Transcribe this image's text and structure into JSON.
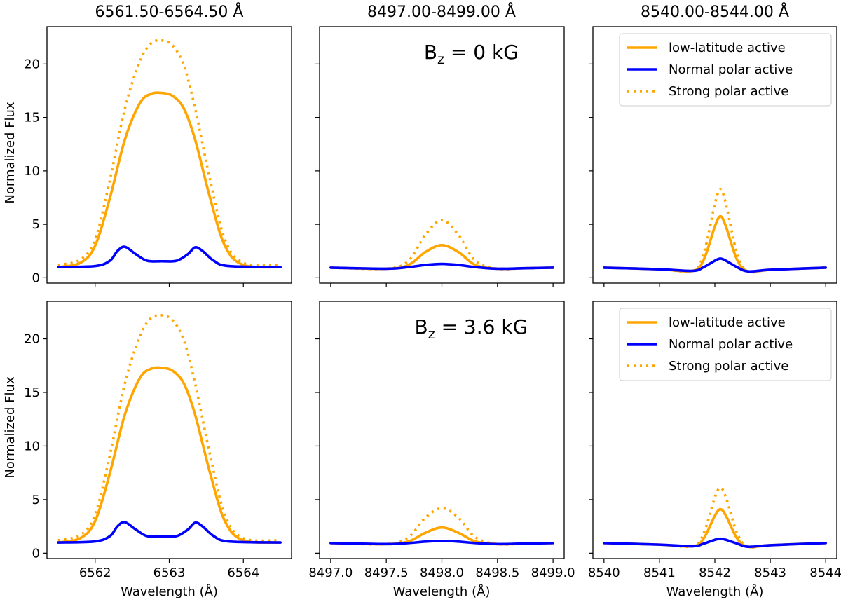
{
  "colors": {
    "orange": "#ffa500",
    "blue": "#0000ff",
    "background": "#ffffff",
    "axes": "#000000"
  },
  "chart_data": {
    "type": "line",
    "layout": "2 rows x 3 columns, shared y-axis across each row",
    "ylabel": "Normalized Flux",
    "xlabel": "Wavelength (Å)",
    "ylim": [
      -0.5,
      23.5
    ],
    "yticks": [
      0,
      5,
      10,
      15,
      20
    ],
    "legend": {
      "placement": "top-right of right column panels",
      "entries": [
        {
          "label": "low-latitude active",
          "color": "#ffa500",
          "style": "solid"
        },
        {
          "label": "Normal polar active",
          "color": "#0000ff",
          "style": "solid"
        },
        {
          "label": "Strong polar active",
          "color": "#ffa500",
          "style": "dotted"
        }
      ]
    },
    "columns": [
      {
        "title": "6561.50-6564.50 Å",
        "xlim": [
          6561.35,
          6564.65
        ],
        "xticks": [
          6562,
          6563,
          6564
        ],
        "xticklabels": [
          "6562",
          "6563",
          "6564"
        ]
      },
      {
        "title": "8497.00-8499.00 Å",
        "xlim": [
          8496.9,
          8499.1
        ],
        "xticks": [
          8497.0,
          8497.5,
          8498.0,
          8498.5,
          8499.0
        ],
        "xticklabels": [
          "8497.0",
          "8497.5",
          "8498.0",
          "8498.5",
          "8499.0"
        ]
      },
      {
        "title": "8540.00-8544.00 Å",
        "xlim": [
          8539.8,
          8544.2
        ],
        "xticks": [
          8540,
          8541,
          8542,
          8543,
          8544
        ],
        "xticklabels": [
          "8540",
          "8541",
          "8542",
          "8543",
          "8544"
        ]
      }
    ],
    "rows": [
      {
        "annotation": {
          "prefix": "B",
          "sub": "z",
          "suffix": " = 0 kG"
        },
        "panels": [
          {
            "series": [
              {
                "name": "low-latitude active",
                "x": [
                  6561.5,
                  6561.8,
                  6562.0,
                  6562.2,
                  6562.4,
                  6562.6,
                  6562.75,
                  6562.9,
                  6563.05,
                  6563.2,
                  6563.35,
                  6563.55,
                  6563.75,
                  6564.0,
                  6564.5
                ],
                "y": [
                  1.0,
                  1.4,
                  3.0,
                  7.5,
                  12.9,
                  16.3,
                  17.2,
                  17.3,
                  17.0,
                  15.8,
                  12.9,
                  7.5,
                  3.0,
                  1.2,
                  1.0
                ]
              },
              {
                "name": "Normal polar active",
                "x": [
                  6561.5,
                  6562.0,
                  6562.2,
                  6562.3,
                  6562.4,
                  6562.55,
                  6562.7,
                  6562.9,
                  6563.1,
                  6563.25,
                  6563.35,
                  6563.45,
                  6563.6,
                  6563.8,
                  6564.5
                ],
                "y": [
                  1.0,
                  1.1,
                  1.6,
                  2.5,
                  2.9,
                  2.2,
                  1.6,
                  1.55,
                  1.6,
                  2.2,
                  2.85,
                  2.5,
                  1.6,
                  1.1,
                  1.0
                ]
              },
              {
                "name": "Strong polar active",
                "x": [
                  6561.5,
                  6561.8,
                  6562.0,
                  6562.2,
                  6562.4,
                  6562.6,
                  6562.75,
                  6562.9,
                  6563.05,
                  6563.2,
                  6563.35,
                  6563.55,
                  6563.75,
                  6564.0,
                  6564.5
                ],
                "y": [
                  1.2,
                  1.7,
                  3.6,
                  9.2,
                  15.8,
                  20.2,
                  21.9,
                  22.2,
                  21.7,
                  19.8,
                  15.8,
                  9.2,
                  3.6,
                  1.4,
                  1.2
                ]
              }
            ]
          },
          {
            "series": [
              {
                "name": "low-latitude active",
                "x": [
                  8497.0,
                  8497.5,
                  8497.7,
                  8497.85,
                  8498.0,
                  8498.15,
                  8498.3,
                  8498.5,
                  8498.75,
                  8499.0
                ],
                "y": [
                  0.95,
                  0.85,
                  1.2,
                  2.4,
                  3.05,
                  2.4,
                  1.2,
                  0.85,
                  0.9,
                  0.95
                ]
              },
              {
                "name": "Normal polar active",
                "x": [
                  8497.0,
                  8497.5,
                  8497.7,
                  8497.85,
                  8498.0,
                  8498.15,
                  8498.3,
                  8498.5,
                  8498.75,
                  8499.0
                ],
                "y": [
                  0.95,
                  0.85,
                  1.0,
                  1.2,
                  1.3,
                  1.2,
                  1.0,
                  0.85,
                  0.9,
                  0.95
                ]
              },
              {
                "name": "Strong polar active",
                "x": [
                  8497.0,
                  8497.5,
                  8497.7,
                  8497.85,
                  8498.0,
                  8498.15,
                  8498.3,
                  8498.5,
                  8498.75,
                  8499.0
                ],
                "y": [
                  0.95,
                  0.85,
                  1.6,
                  4.0,
                  5.4,
                  4.0,
                  1.6,
                  0.85,
                  0.9,
                  0.95
                ]
              }
            ]
          },
          {
            "series": [
              {
                "name": "low-latitude active",
                "x": [
                  8540.0,
                  8541.0,
                  8541.6,
                  8541.8,
                  8542.0,
                  8542.1,
                  8542.2,
                  8542.4,
                  8542.6,
                  8543.0,
                  8544.0
                ],
                "y": [
                  0.95,
                  0.8,
                  0.65,
                  1.7,
                  4.8,
                  5.75,
                  4.8,
                  1.7,
                  0.6,
                  0.75,
                  0.95
                ]
              },
              {
                "name": "Normal polar active",
                "x": [
                  8540.0,
                  8541.0,
                  8541.6,
                  8541.8,
                  8542.0,
                  8542.1,
                  8542.2,
                  8542.4,
                  8542.6,
                  8543.0,
                  8544.0
                ],
                "y": [
                  0.95,
                  0.8,
                  0.65,
                  1.0,
                  1.6,
                  1.8,
                  1.6,
                  1.0,
                  0.6,
                  0.75,
                  0.95
                ]
              },
              {
                "name": "Strong polar active",
                "x": [
                  8540.0,
                  8541.0,
                  8541.6,
                  8541.8,
                  8542.0,
                  8542.1,
                  8542.2,
                  8542.4,
                  8542.6,
                  8543.0,
                  8544.0
                ],
                "y": [
                  0.95,
                  0.8,
                  0.65,
                  2.3,
                  6.9,
                  8.3,
                  6.9,
                  2.3,
                  0.6,
                  0.75,
                  0.95
                ]
              }
            ]
          }
        ]
      },
      {
        "annotation": {
          "prefix": "B",
          "sub": "z",
          "suffix": " = 3.6 kG"
        },
        "panels": [
          {
            "series": [
              {
                "name": "low-latitude active",
                "x": [
                  6561.5,
                  6561.8,
                  6562.0,
                  6562.2,
                  6562.4,
                  6562.6,
                  6562.75,
                  6562.9,
                  6563.05,
                  6563.2,
                  6563.35,
                  6563.55,
                  6563.75,
                  6564.0,
                  6564.5
                ],
                "y": [
                  1.0,
                  1.4,
                  3.0,
                  7.5,
                  12.9,
                  16.3,
                  17.2,
                  17.3,
                  17.0,
                  15.8,
                  12.9,
                  7.5,
                  3.0,
                  1.2,
                  1.0
                ]
              },
              {
                "name": "Normal polar active",
                "x": [
                  6561.5,
                  6562.0,
                  6562.2,
                  6562.3,
                  6562.4,
                  6562.55,
                  6562.7,
                  6562.9,
                  6563.1,
                  6563.25,
                  6563.35,
                  6563.45,
                  6563.6,
                  6563.8,
                  6564.5
                ],
                "y": [
                  1.0,
                  1.1,
                  1.6,
                  2.5,
                  2.9,
                  2.2,
                  1.6,
                  1.55,
                  1.6,
                  2.2,
                  2.85,
                  2.5,
                  1.6,
                  1.1,
                  1.0
                ]
              },
              {
                "name": "Strong polar active",
                "x": [
                  6561.5,
                  6561.8,
                  6562.0,
                  6562.2,
                  6562.4,
                  6562.6,
                  6562.75,
                  6562.9,
                  6563.05,
                  6563.2,
                  6563.35,
                  6563.55,
                  6563.75,
                  6564.0,
                  6564.5
                ],
                "y": [
                  1.2,
                  1.7,
                  3.6,
                  9.2,
                  15.8,
                  20.2,
                  21.9,
                  22.2,
                  21.7,
                  19.8,
                  15.8,
                  9.2,
                  3.6,
                  1.4,
                  1.2
                ]
              }
            ]
          },
          {
            "series": [
              {
                "name": "low-latitude active",
                "x": [
                  8497.0,
                  8497.5,
                  8497.7,
                  8497.85,
                  8498.0,
                  8498.15,
                  8498.3,
                  8498.5,
                  8498.75,
                  8499.0
                ],
                "y": [
                  0.95,
                  0.85,
                  1.1,
                  1.9,
                  2.4,
                  1.9,
                  1.1,
                  0.85,
                  0.9,
                  0.95
                ]
              },
              {
                "name": "Normal polar active",
                "x": [
                  8497.0,
                  8497.5,
                  8497.7,
                  8497.85,
                  8498.0,
                  8498.15,
                  8498.3,
                  8498.5,
                  8498.75,
                  8499.0
                ],
                "y": [
                  0.95,
                  0.85,
                  0.95,
                  1.08,
                  1.15,
                  1.08,
                  0.95,
                  0.85,
                  0.9,
                  0.95
                ]
              },
              {
                "name": "Strong polar active",
                "x": [
                  8497.0,
                  8497.5,
                  8497.7,
                  8497.85,
                  8498.0,
                  8498.15,
                  8498.3,
                  8498.5,
                  8498.75,
                  8499.0
                ],
                "y": [
                  0.95,
                  0.85,
                  1.5,
                  3.3,
                  4.2,
                  3.3,
                  1.5,
                  0.85,
                  0.9,
                  0.95
                ]
              }
            ]
          },
          {
            "series": [
              {
                "name": "low-latitude active",
                "x": [
                  8540.0,
                  8541.0,
                  8541.6,
                  8541.8,
                  8542.0,
                  8542.1,
                  8542.2,
                  8542.4,
                  8542.6,
                  8543.0,
                  8544.0
                ],
                "y": [
                  0.95,
                  0.8,
                  0.65,
                  1.4,
                  3.5,
                  4.1,
                  3.5,
                  1.4,
                  0.6,
                  0.75,
                  0.95
                ]
              },
              {
                "name": "Normal polar active",
                "x": [
                  8540.0,
                  8541.0,
                  8541.6,
                  8541.8,
                  8542.0,
                  8542.1,
                  8542.2,
                  8542.4,
                  8542.6,
                  8543.0,
                  8544.0
                ],
                "y": [
                  0.95,
                  0.8,
                  0.65,
                  0.9,
                  1.25,
                  1.35,
                  1.25,
                  0.9,
                  0.6,
                  0.75,
                  0.95
                ]
              },
              {
                "name": "Strong polar active",
                "x": [
                  8540.0,
                  8541.0,
                  8541.6,
                  8541.8,
                  8542.0,
                  8542.1,
                  8542.2,
                  8542.4,
                  8542.6,
                  8543.0,
                  8544.0
                ],
                "y": [
                  0.95,
                  0.8,
                  0.65,
                  1.9,
                  5.2,
                  6.1,
                  5.2,
                  1.9,
                  0.6,
                  0.75,
                  0.95
                ]
              }
            ]
          }
        ]
      }
    ]
  }
}
